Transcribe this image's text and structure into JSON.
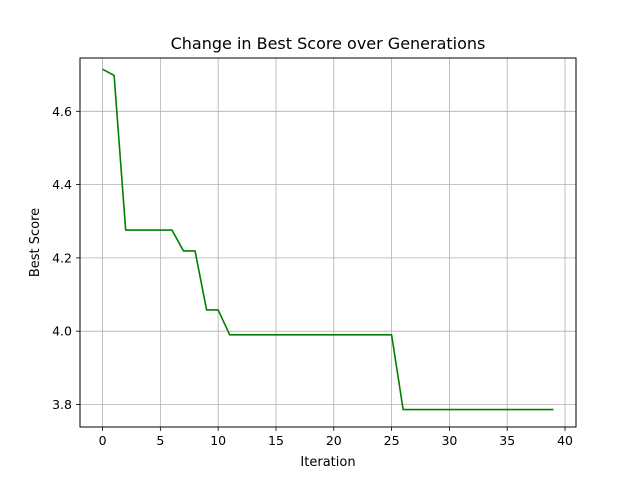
{
  "chart_data": {
    "type": "line",
    "title": "Change in Best Score over Generations",
    "xlabel": "Iteration",
    "ylabel": "Best Score",
    "xlim": [
      -1.95,
      40.95
    ],
    "ylim": [
      3.7385,
      4.7455
    ],
    "xticks": [
      0,
      5,
      10,
      15,
      20,
      25,
      30,
      35,
      40
    ],
    "yticks": [
      3.8,
      4.0,
      4.2,
      4.4,
      4.6
    ],
    "xtick_labels": [
      "0",
      "5",
      "10",
      "15",
      "20",
      "25",
      "30",
      "35",
      "40"
    ],
    "ytick_labels": [
      "3.8",
      "4.0",
      "4.2",
      "4.4",
      "4.6"
    ],
    "grid": true,
    "series": [
      {
        "color": "#008000",
        "x": [
          0,
          1,
          2,
          3,
          4,
          5,
          6,
          7,
          8,
          9,
          10,
          11,
          12,
          13,
          14,
          15,
          16,
          17,
          18,
          19,
          20,
          21,
          22,
          23,
          24,
          25,
          26,
          27,
          28,
          29,
          30,
          31,
          32,
          33,
          34,
          35,
          36,
          37,
          38,
          39
        ],
        "y": [
          4.715,
          4.698,
          4.276,
          4.276,
          4.276,
          4.276,
          4.276,
          4.219,
          4.219,
          4.058,
          4.058,
          3.99,
          3.99,
          3.99,
          3.99,
          3.99,
          3.99,
          3.99,
          3.99,
          3.99,
          3.99,
          3.99,
          3.99,
          3.99,
          3.99,
          3.99,
          3.786,
          3.786,
          3.786,
          3.786,
          3.786,
          3.786,
          3.786,
          3.786,
          3.786,
          3.786,
          3.786,
          3.786,
          3.786,
          3.786
        ]
      }
    ]
  }
}
